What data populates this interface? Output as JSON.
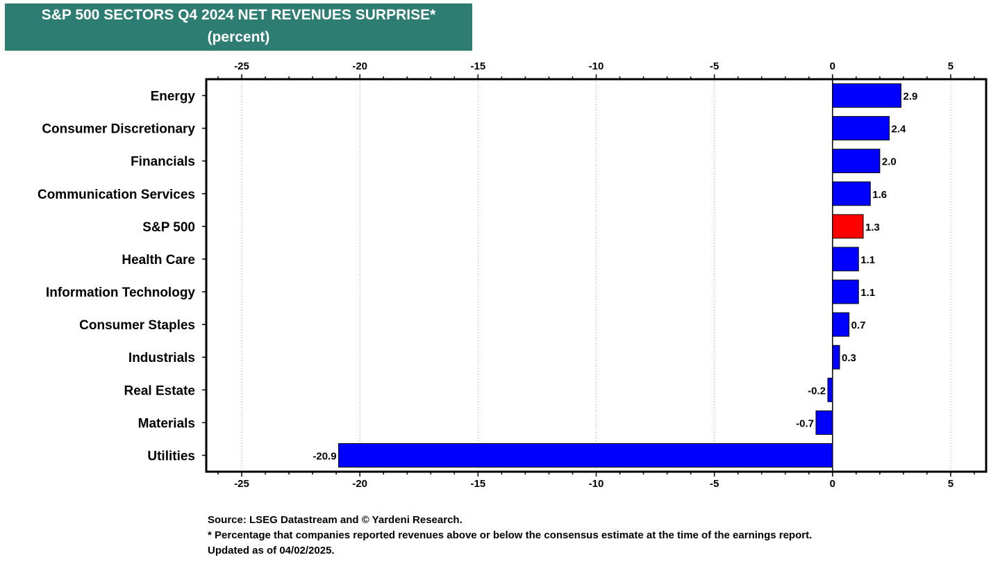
{
  "header": {
    "title_line1": "S&P 500 SECTORS Q4 2024 NET REVENUES SURPRISE*",
    "title_line2": "(percent)"
  },
  "colors": {
    "banner": "#2e7d73",
    "bar": "#0000ff",
    "highlight_bar": "#ff0000"
  },
  "chart_data": {
    "type": "bar",
    "orientation": "horizontal",
    "title": "S&P 500 SECTORS Q4 2024 NET REVENUES SURPRISE*",
    "subtitle": "(percent)",
    "categories": [
      "Energy",
      "Consumer Discretionary",
      "Financials",
      "Communication Services",
      "S&P 500",
      "Health Care",
      "Information Technology",
      "Consumer Staples",
      "Industrials",
      "Real Estate",
      "Materials",
      "Utilities"
    ],
    "values": [
      2.9,
      2.4,
      2.0,
      1.6,
      1.3,
      1.1,
      1.1,
      0.7,
      0.3,
      -0.2,
      -0.7,
      -20.9
    ],
    "value_labels": [
      "2.9",
      "2.4",
      "2.0",
      "1.6",
      "1.3",
      "1.1",
      "1.1",
      "0.7",
      "0.3",
      "-0.2",
      "-0.7",
      "-20.9"
    ],
    "highlight": "S&P 500",
    "xlim": [
      -26.5,
      6.5
    ],
    "xticks": [
      -25,
      -20,
      -15,
      -10,
      -5,
      0,
      5
    ],
    "xtick_labels": [
      "-25",
      "-20",
      "-15",
      "-10",
      "-5",
      "0",
      "5"
    ],
    "grid": "vertical dotted",
    "axis_labels_position": "top and bottom"
  },
  "footnotes": {
    "source": "Source: LSEG Datastream and © Yardeni Research.",
    "note": "* Percentage that companies reported revenues above or below the consensus estimate at the time of the earnings report.",
    "updated": "Updated as of 04/02/2025."
  }
}
